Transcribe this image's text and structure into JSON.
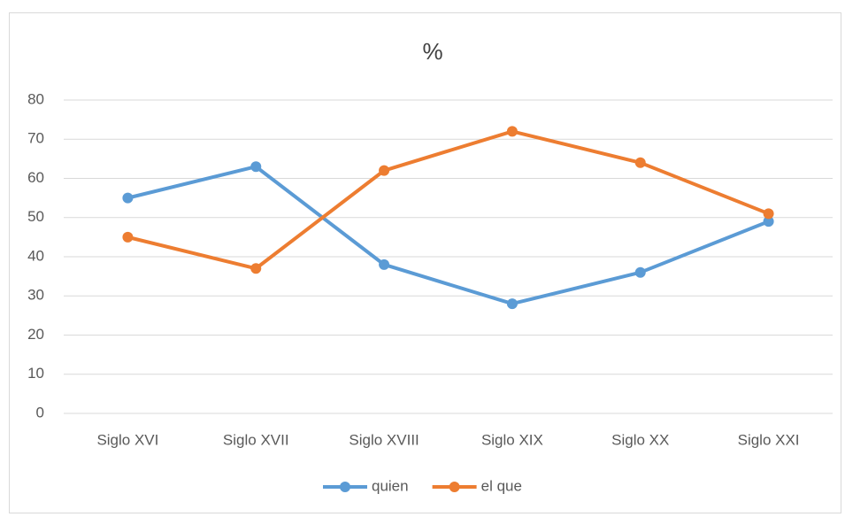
{
  "chart_data": {
    "type": "line",
    "title": "%",
    "categories": [
      "Siglo XVI",
      "Siglo XVII",
      "Siglo XVIII",
      "Siglo XIX",
      "Siglo XX",
      "Siglo XXI"
    ],
    "series": [
      {
        "name": "quien",
        "color": "#5b9bd5",
        "values": [
          55,
          63,
          38,
          28,
          36,
          49
        ]
      },
      {
        "name": "el que",
        "color": "#ed7d31",
        "values": [
          45,
          37,
          62,
          72,
          64,
          51
        ]
      }
    ],
    "ylim": [
      0,
      80
    ],
    "yticks": [
      0,
      10,
      20,
      30,
      40,
      50,
      60,
      70,
      80
    ],
    "grid": true,
    "legend": "bottom"
  }
}
